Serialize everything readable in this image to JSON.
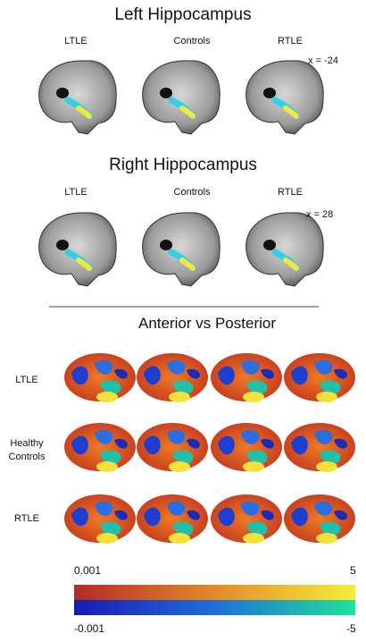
{
  "panels": [
    {
      "title": "Left Hippocampus",
      "columns": [
        "LTLE",
        "Controls",
        "RTLE"
      ],
      "coordinate": "x = -24"
    },
    {
      "title": "Right Hippocampus",
      "columns": [
        "LTLE",
        "Controls",
        "RTLE"
      ],
      "coordinate": "x = 28"
    }
  ],
  "surface": {
    "title": "Anterior vs Posterior",
    "rows": [
      "LTLE",
      "Healthy Controls",
      "RTLE"
    ]
  },
  "colorbar": {
    "positive": {
      "min": "0.001",
      "max": "5"
    },
    "negative": {
      "min": "-0.001",
      "max": "-5"
    }
  }
}
